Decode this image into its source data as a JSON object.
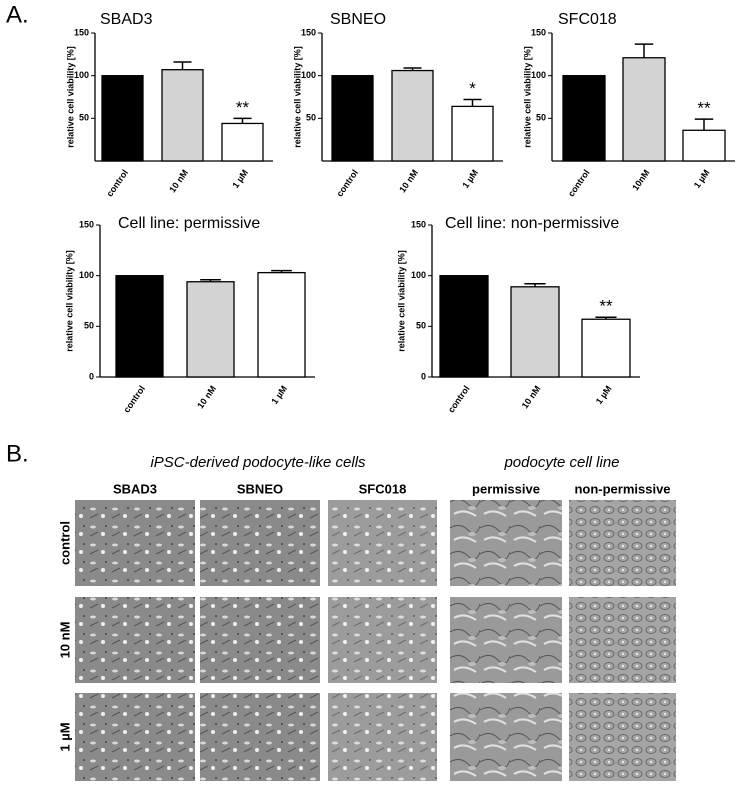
{
  "panel_labels": [
    "A.",
    "B."
  ],
  "chart_data": [
    {
      "type": "bar",
      "title": "SBAD3",
      "y_label": "relative cell viability [%]",
      "categories": [
        "control",
        "10 nM",
        "1 µM"
      ],
      "values": [
        100,
        107,
        44
      ],
      "errors": [
        0,
        9,
        6
      ],
      "colors": [
        "#000000",
        "#d3d3d3",
        "#ffffff"
      ],
      "ylim": [
        0,
        150
      ],
      "yticks": [
        50,
        100,
        150
      ],
      "annotations": [
        {
          "x": "1 µM",
          "text": "**"
        }
      ]
    },
    {
      "type": "bar",
      "title": "SBNEO",
      "y_label": "relative cell viability [%]",
      "categories": [
        "control",
        "10 nM",
        "1 µM"
      ],
      "values": [
        100,
        106,
        64
      ],
      "errors": [
        0,
        3,
        8
      ],
      "colors": [
        "#000000",
        "#d3d3d3",
        "#ffffff"
      ],
      "ylim": [
        0,
        150
      ],
      "yticks": [
        50,
        100,
        150
      ],
      "annotations": [
        {
          "x": "1 µM",
          "text": "*"
        }
      ]
    },
    {
      "type": "bar",
      "title": "SFC018",
      "y_label": "relative cell viability [%]",
      "categories": [
        "control",
        "10nM",
        "1 µM"
      ],
      "values": [
        100,
        121,
        36
      ],
      "errors": [
        0,
        16,
        13
      ],
      "colors": [
        "#000000",
        "#d3d3d3",
        "#ffffff"
      ],
      "ylim": [
        0,
        150
      ],
      "yticks": [
        50,
        100,
        150
      ],
      "annotations": [
        {
          "x": "1 µM",
          "text": "**"
        }
      ]
    },
    {
      "type": "bar",
      "title": "Cell line: permissive",
      "y_label": "relative cell viability [%]",
      "categories": [
        "control",
        "10 nM",
        "1 µM"
      ],
      "values": [
        100,
        94,
        103
      ],
      "errors": [
        0,
        2,
        2
      ],
      "colors": [
        "#000000",
        "#d3d3d3",
        "#ffffff"
      ],
      "ylim": [
        0,
        150
      ],
      "yticks": [
        0,
        50,
        100,
        150
      ],
      "annotations": []
    },
    {
      "type": "bar",
      "title": "Cell line: non-permissive",
      "y_label": "relative cell viability [%]",
      "categories": [
        "control",
        "10 nM",
        "1 µM"
      ],
      "values": [
        100,
        89,
        57
      ],
      "errors": [
        0,
        3,
        2
      ],
      "colors": [
        "#000000",
        "#d3d3d3",
        "#ffffff"
      ],
      "ylim": [
        0,
        150
      ],
      "yticks": [
        0,
        50,
        100,
        150
      ],
      "annotations": [
        {
          "x": "1 µM",
          "text": "**"
        }
      ]
    }
  ],
  "panel_b": {
    "group_headers": [
      "iPSC-derived podocyte-like cells",
      "podocyte cell line"
    ],
    "columns": [
      "SBAD3",
      "SBNEO",
      "SFC018",
      "permissive",
      "non-permissive"
    ],
    "rows": [
      "control",
      "10 nM",
      "1 µM"
    ]
  }
}
